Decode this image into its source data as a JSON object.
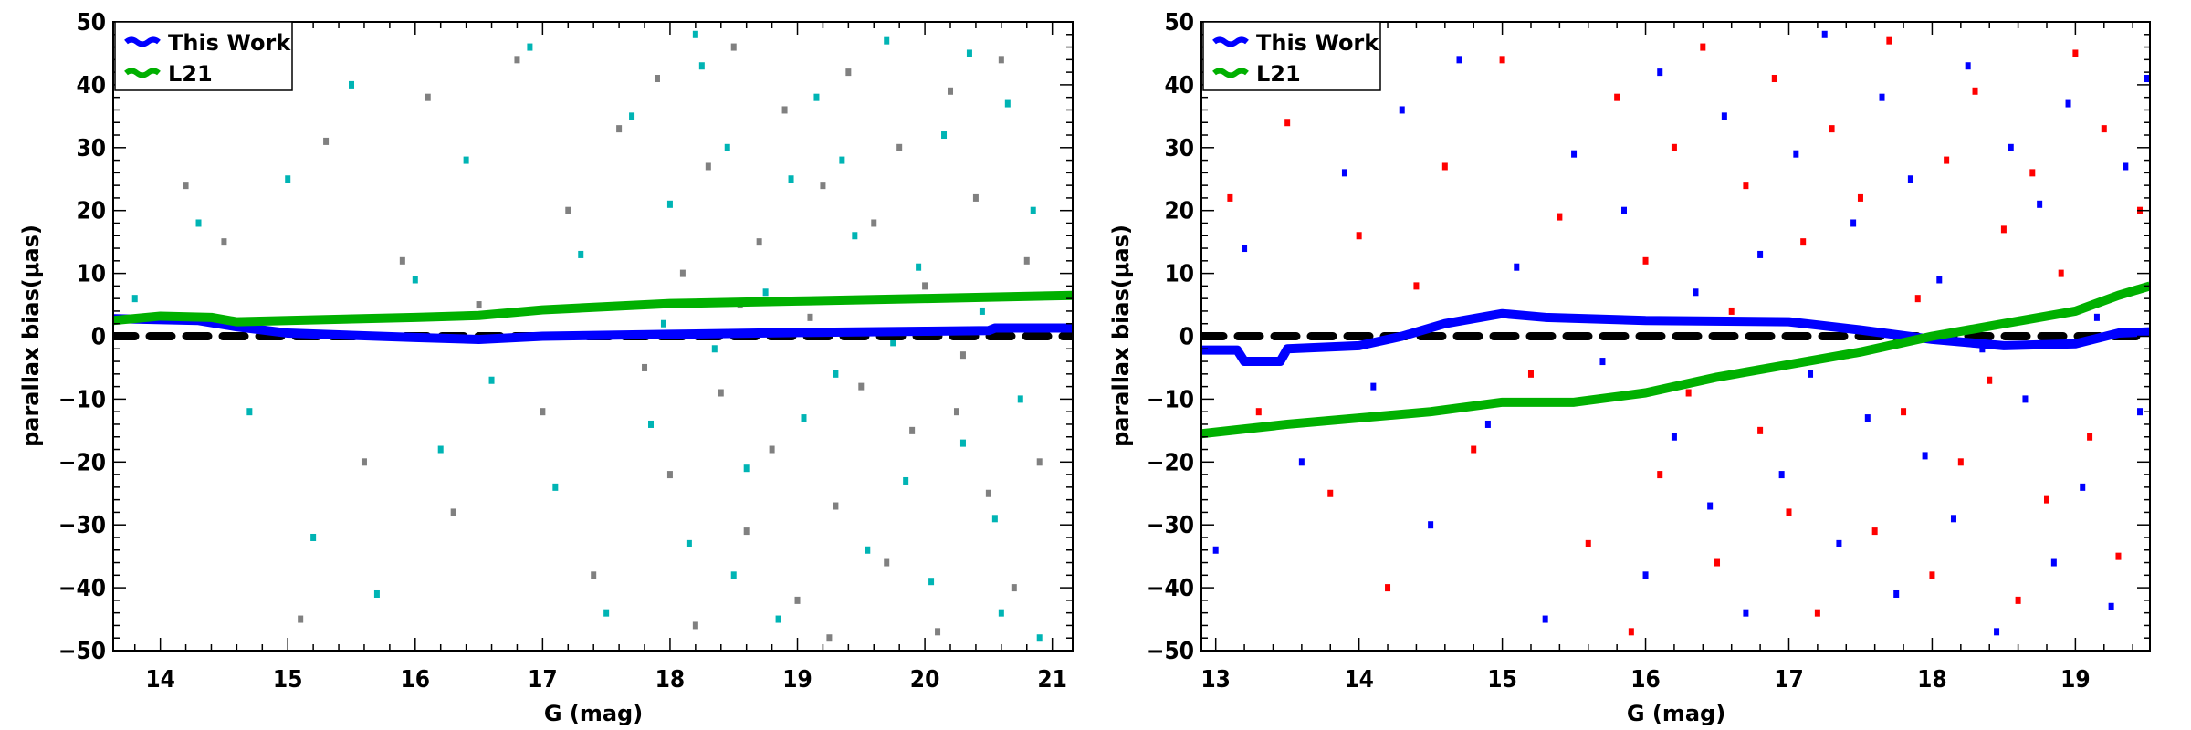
{
  "chart_data": [
    {
      "type": "scatter",
      "xlabel": "G (mag)",
      "ylabel": "parallax bias(μas)",
      "xlim": [
        13.63,
        21.16
      ],
      "ylim": [
        -50,
        50
      ],
      "xticks": [
        "14",
        "15",
        "16",
        "17",
        "18",
        "19",
        "20",
        "21"
      ],
      "yticks": [
        "-50",
        "-40",
        "-30",
        "-20",
        "-10",
        "0",
        "10",
        "20",
        "30",
        "40",
        "50"
      ],
      "grid": false,
      "legend": {
        "placement": "top-left",
        "entries": [
          "This Work",
          "L21"
        ]
      },
      "reference_line": {
        "y": 0,
        "style": "dashed",
        "color": "#000000"
      },
      "points": [
        {
          "color": "#808080",
          "xy": [
            [
              14.2,
              24
            ],
            [
              14.5,
              15
            ],
            [
              15.1,
              -45
            ],
            [
              15.3,
              31
            ],
            [
              15.6,
              -20
            ],
            [
              15.9,
              12
            ],
            [
              16.1,
              38
            ],
            [
              16.3,
              -28
            ],
            [
              16.5,
              5
            ],
            [
              16.8,
              44
            ],
            [
              17.0,
              -12
            ],
            [
              17.2,
              20
            ],
            [
              17.4,
              -38
            ],
            [
              17.6,
              33
            ],
            [
              17.8,
              -5
            ],
            [
              17.9,
              41
            ],
            [
              18.0,
              -22
            ],
            [
              18.1,
              10
            ],
            [
              18.2,
              -46
            ],
            [
              18.3,
              27
            ],
            [
              18.4,
              -9
            ],
            [
              18.5,
              46
            ],
            [
              18.6,
              -31
            ],
            [
              18.7,
              15
            ],
            [
              18.8,
              -18
            ],
            [
              18.9,
              36
            ],
            [
              19.0,
              -42
            ],
            [
              19.1,
              3
            ],
            [
              19.2,
              24
            ],
            [
              19.3,
              -27
            ],
            [
              19.4,
              42
            ],
            [
              19.5,
              -8
            ],
            [
              19.6,
              18
            ],
            [
              19.7,
              -36
            ],
            [
              19.8,
              30
            ],
            [
              19.9,
              -15
            ],
            [
              20.0,
              8
            ],
            [
              20.1,
              -47
            ],
            [
              20.2,
              39
            ],
            [
              20.3,
              -3
            ],
            [
              20.4,
              22
            ],
            [
              20.5,
              -25
            ],
            [
              20.6,
              44
            ],
            [
              20.7,
              -40
            ],
            [
              20.8,
              12
            ],
            [
              20.9,
              -20
            ],
            [
              19.25,
              -48
            ],
            [
              18.55,
              5
            ],
            [
              19.65,
              0
            ],
            [
              20.25,
              -12
            ]
          ]
        },
        {
          "color": "#00b4b4",
          "xy": [
            [
              13.8,
              6
            ],
            [
              14.3,
              18
            ],
            [
              14.7,
              -12
            ],
            [
              15.0,
              25
            ],
            [
              15.2,
              -32
            ],
            [
              15.5,
              40
            ],
            [
              15.7,
              -41
            ],
            [
              16.0,
              9
            ],
            [
              16.2,
              -18
            ],
            [
              16.4,
              28
            ],
            [
              16.6,
              -7
            ],
            [
              16.9,
              46
            ],
            [
              17.1,
              -24
            ],
            [
              17.3,
              13
            ],
            [
              17.5,
              -44
            ],
            [
              17.7,
              35
            ],
            [
              17.85,
              -14
            ],
            [
              18.0,
              21
            ],
            [
              18.15,
              -33
            ],
            [
              18.25,
              43
            ],
            [
              18.35,
              -2
            ],
            [
              18.45,
              30
            ],
            [
              18.6,
              -21
            ],
            [
              18.75,
              7
            ],
            [
              18.85,
              -45
            ],
            [
              18.95,
              25
            ],
            [
              19.05,
              -13
            ],
            [
              19.15,
              38
            ],
            [
              19.3,
              -6
            ],
            [
              19.45,
              16
            ],
            [
              19.55,
              -34
            ],
            [
              19.7,
              47
            ],
            [
              19.85,
              -23
            ],
            [
              19.95,
              11
            ],
            [
              20.05,
              -39
            ],
            [
              20.15,
              32
            ],
            [
              20.3,
              -17
            ],
            [
              20.45,
              4
            ],
            [
              20.55,
              -29
            ],
            [
              20.65,
              37
            ],
            [
              20.75,
              -10
            ],
            [
              20.85,
              20
            ],
            [
              20.9,
              -48
            ],
            [
              18.5,
              -38
            ],
            [
              19.35,
              28
            ],
            [
              20.35,
              45
            ],
            [
              17.95,
              2
            ],
            [
              19.75,
              -1
            ],
            [
              20.6,
              -44
            ],
            [
              18.2,
              48
            ]
          ]
        },
        {
          "color": "#0000ff",
          "xy": []
        },
        {
          "color": "#0000ff",
          "xy": []
        }
      ],
      "lines": [
        {
          "name": "This Work",
          "color": "#0000ff",
          "x": [
            13.63,
            14.3,
            14.6,
            15.0,
            16.0,
            16.5,
            17.0,
            18.0,
            19.0,
            20.0,
            20.5,
            20.55,
            21.16
          ],
          "y": [
            2.8,
            2.5,
            1.5,
            0.5,
            -0.2,
            -0.5,
            0.0,
            0.3,
            0.6,
            0.8,
            0.9,
            1.3,
            1.3
          ]
        },
        {
          "name": "L21",
          "color": "#00b000",
          "x": [
            13.63,
            14.0,
            14.4,
            14.6,
            15.0,
            16.0,
            16.5,
            17.0,
            18.0,
            19.0,
            20.0,
            21.16
          ],
          "y": [
            2.5,
            3.2,
            3.0,
            2.3,
            2.5,
            3.0,
            3.3,
            4.2,
            5.2,
            5.6,
            6.0,
            6.5
          ]
        }
      ]
    },
    {
      "type": "scatter",
      "xlabel": "G (mag)",
      "ylabel": "parallax bias(μas)",
      "xlim": [
        12.9,
        19.52
      ],
      "ylim": [
        -50,
        50
      ],
      "xticks": [
        "13",
        "14",
        "15",
        "16",
        "17",
        "18",
        "19"
      ],
      "yticks": [
        "-50",
        "-40",
        "-30",
        "-20",
        "-10",
        "0",
        "10",
        "20",
        "30",
        "40",
        "50"
      ],
      "grid": false,
      "legend": {
        "placement": "top-left",
        "entries": [
          "This Work",
          "L21"
        ]
      },
      "reference_line": {
        "y": 0,
        "style": "dashed",
        "color": "#000000"
      },
      "points": [
        {
          "color": "#ff0000",
          "xy": [
            [
              13.1,
              22
            ],
            [
              13.3,
              -12
            ],
            [
              13.5,
              34
            ],
            [
              13.8,
              -25
            ],
            [
              14.0,
              16
            ],
            [
              14.2,
              -40
            ],
            [
              14.4,
              8
            ],
            [
              14.6,
              27
            ],
            [
              14.8,
              -18
            ],
            [
              15.0,
              44
            ],
            [
              15.2,
              -6
            ],
            [
              15.4,
              19
            ],
            [
              15.6,
              -33
            ],
            [
              15.8,
              38
            ],
            [
              15.9,
              -47
            ],
            [
              16.0,
              12
            ],
            [
              16.1,
              -22
            ],
            [
              16.2,
              30
            ],
            [
              16.3,
              -9
            ],
            [
              16.4,
              46
            ],
            [
              16.5,
              -36
            ],
            [
              16.6,
              4
            ],
            [
              16.7,
              24
            ],
            [
              16.8,
              -15
            ],
            [
              16.9,
              41
            ],
            [
              17.0,
              -28
            ],
            [
              17.1,
              15
            ],
            [
              17.2,
              -44
            ],
            [
              17.3,
              33
            ],
            [
              17.4,
              -3
            ],
            [
              17.5,
              22
            ],
            [
              17.6,
              -31
            ],
            [
              17.7,
              47
            ],
            [
              17.8,
              -12
            ],
            [
              17.9,
              6
            ],
            [
              18.0,
              -38
            ],
            [
              18.1,
              28
            ],
            [
              18.2,
              -20
            ],
            [
              18.3,
              39
            ],
            [
              18.4,
              -7
            ],
            [
              18.5,
              17
            ],
            [
              18.6,
              -42
            ],
            [
              18.7,
              26
            ],
            [
              18.8,
              -26
            ],
            [
              18.9,
              10
            ],
            [
              19.0,
              45
            ],
            [
              19.1,
              -16
            ],
            [
              19.2,
              33
            ],
            [
              19.3,
              -35
            ],
            [
              19.45,
              20
            ]
          ]
        },
        {
          "color": "#0000ff",
          "xy": [
            [
              13.0,
              -34
            ],
            [
              13.2,
              14
            ],
            [
              13.4,
              40
            ],
            [
              13.6,
              -20
            ],
            [
              13.9,
              26
            ],
            [
              14.1,
              -8
            ],
            [
              14.3,
              36
            ],
            [
              14.5,
              -30
            ],
            [
              14.7,
              44
            ],
            [
              14.9,
              -14
            ],
            [
              15.1,
              11
            ],
            [
              15.3,
              -45
            ],
            [
              15.5,
              29
            ],
            [
              15.7,
              -4
            ],
            [
              15.85,
              20
            ],
            [
              16.0,
              -38
            ],
            [
              16.1,
              42
            ],
            [
              16.2,
              -16
            ],
            [
              16.35,
              7
            ],
            [
              16.45,
              -27
            ],
            [
              16.55,
              35
            ],
            [
              16.7,
              -44
            ],
            [
              16.8,
              13
            ],
            [
              16.95,
              -22
            ],
            [
              17.05,
              29
            ],
            [
              17.15,
              -6
            ],
            [
              17.25,
              48
            ],
            [
              17.35,
              -33
            ],
            [
              17.45,
              18
            ],
            [
              17.55,
              -13
            ],
            [
              17.65,
              38
            ],
            [
              17.75,
              -41
            ],
            [
              17.85,
              25
            ],
            [
              17.95,
              -19
            ],
            [
              18.05,
              9
            ],
            [
              18.15,
              -29
            ],
            [
              18.25,
              43
            ],
            [
              18.35,
              -2
            ],
            [
              18.45,
              -47
            ],
            [
              18.55,
              30
            ],
            [
              18.65,
              -10
            ],
            [
              18.75,
              21
            ],
            [
              18.85,
              -36
            ],
            [
              18.95,
              37
            ],
            [
              19.05,
              -24
            ],
            [
              19.15,
              3
            ],
            [
              19.25,
              -43
            ],
            [
              19.35,
              27
            ],
            [
              19.45,
              -12
            ],
            [
              19.5,
              41
            ]
          ]
        }
      ],
      "lines": [
        {
          "name": "This Work",
          "color": "#0000ff",
          "x": [
            12.9,
            13.15,
            13.2,
            13.45,
            13.5,
            14.0,
            14.3,
            14.6,
            15.0,
            15.3,
            16.0,
            17.0,
            17.5,
            18.0,
            18.5,
            19.0,
            19.3,
            19.52
          ],
          "y": [
            -2.2,
            -2.2,
            -4.0,
            -4.0,
            -2.0,
            -1.5,
            0.0,
            2.0,
            3.6,
            3.0,
            2.5,
            2.3,
            1.0,
            -0.5,
            -1.5,
            -1.2,
            0.5,
            0.7
          ]
        },
        {
          "name": "L21",
          "color": "#00b000",
          "x": [
            12.9,
            13.5,
            14.0,
            14.5,
            15.0,
            15.5,
            16.0,
            16.5,
            17.0,
            17.5,
            18.0,
            18.5,
            19.0,
            19.3,
            19.52
          ],
          "y": [
            -15.5,
            -14.0,
            -13.0,
            -12.0,
            -10.5,
            -10.5,
            -9.0,
            -6.5,
            -4.5,
            -2.5,
            0.0,
            2.0,
            4.0,
            6.5,
            8.0
          ]
        }
      ]
    }
  ]
}
